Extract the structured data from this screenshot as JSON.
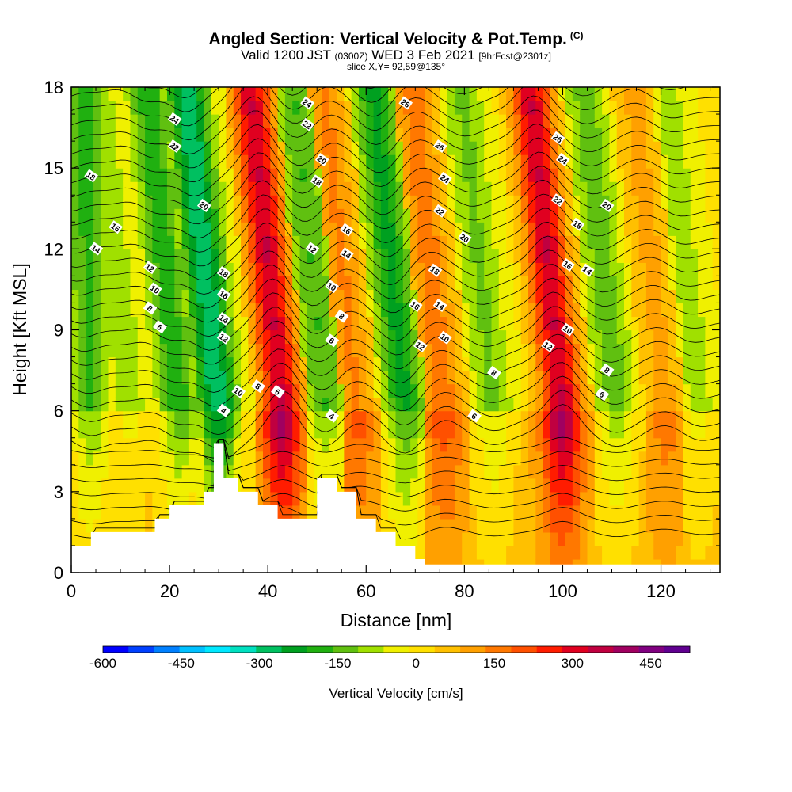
{
  "chart_data": {
    "type": "heatmap",
    "title": "Angled Section: Vertical Velocity & Pot.Temp.",
    "title_tag": "(C)",
    "subtitle_main": "Valid 1200 JST",
    "subtitle_zulu": "(0300Z)",
    "subtitle_date": "WED 3 Feb 2021",
    "subtitle_fcst": "[9hrFcst@2301z]",
    "subtitle2": "slice X,Y= 92,59@135°",
    "xlabel": "Distance [nm]",
    "ylabel": "Height [Kft MSL]",
    "xlim": [
      0,
      132
    ],
    "ylim": [
      0,
      18
    ],
    "x_ticks": [
      "0",
      "20",
      "40",
      "60",
      "80",
      "100",
      "120"
    ],
    "y_ticks": [
      "0",
      "3",
      "6",
      "9",
      "12",
      "15",
      "18"
    ],
    "colorbar": {
      "label": "Vertical Velocity [cm/s]",
      "ticks": [
        "-600",
        "-450",
        "-300",
        "-150",
        "0",
        "150",
        "300",
        "450"
      ],
      "colors": [
        "#0000ff",
        "#0040ff",
        "#0080ff",
        "#00c0ff",
        "#00e8ff",
        "#00e0c0",
        "#00c060",
        "#00a020",
        "#20b010",
        "#60c010",
        "#a0e000",
        "#f0f000",
        "#ffe000",
        "#ffc000",
        "#ffa000",
        "#ff7800",
        "#ff5000",
        "#ff1c00",
        "#e00020",
        "#c00040",
        "#a00060",
        "#800080",
        "#600090"
      ]
    },
    "vertical_velocity_columns": [
      {
        "x_center": 4,
        "value": -170
      },
      {
        "x_center": 12,
        "value": -90
      },
      {
        "x_center": 22,
        "value": -190
      },
      {
        "x_center": 30,
        "value": -300
      },
      {
        "x_center": 36,
        "value": -60
      },
      {
        "x_center": 43,
        "value": 330
      },
      {
        "x_center": 52,
        "value": -160
      },
      {
        "x_center": 58,
        "value": 140
      },
      {
        "x_center": 68,
        "value": -220
      },
      {
        "x_center": 76,
        "value": 160
      },
      {
        "x_center": 86,
        "value": -120
      },
      {
        "x_center": 100,
        "value": 330
      },
      {
        "x_center": 111,
        "value": -140
      },
      {
        "x_center": 121,
        "value": 100
      },
      {
        "x_center": 128,
        "value": -80
      }
    ],
    "terrain_profile": {
      "x": [
        0,
        4,
        9,
        13,
        17,
        20,
        24,
        27,
        29,
        31,
        34,
        38,
        42,
        46,
        50,
        54,
        58,
        62,
        66,
        70,
        72,
        132
      ],
      "height_kft": [
        1.0,
        1.5,
        1.5,
        1.5,
        2.0,
        2.5,
        2.5,
        3.0,
        4.8,
        3.5,
        3.0,
        2.5,
        2.0,
        2.0,
        3.5,
        3.0,
        2.0,
        1.5,
        1.0,
        0.5,
        0.3,
        0.3
      ]
    },
    "contour_labels": [
      {
        "x": 21,
        "y": 16.8,
        "text": "24"
      },
      {
        "x": 21,
        "y": 15.8,
        "text": "22"
      },
      {
        "x": 4,
        "y": 14.7,
        "text": "18"
      },
      {
        "x": 27,
        "y": 13.6,
        "text": "20"
      },
      {
        "x": 9,
        "y": 12.8,
        "text": "16"
      },
      {
        "x": 5,
        "y": 12.0,
        "text": "14"
      },
      {
        "x": 16,
        "y": 11.3,
        "text": "12"
      },
      {
        "x": 17,
        "y": 10.5,
        "text": "10"
      },
      {
        "x": 16,
        "y": 9.8,
        "text": "8"
      },
      {
        "x": 18,
        "y": 9.1,
        "text": "6"
      },
      {
        "x": 31,
        "y": 11.1,
        "text": "18"
      },
      {
        "x": 31,
        "y": 10.3,
        "text": "16"
      },
      {
        "x": 31,
        "y": 9.4,
        "text": "14"
      },
      {
        "x": 31,
        "y": 8.7,
        "text": "12"
      },
      {
        "x": 34,
        "y": 6.7,
        "text": "10"
      },
      {
        "x": 38,
        "y": 6.9,
        "text": "8"
      },
      {
        "x": 42,
        "y": 6.7,
        "text": "6"
      },
      {
        "x": 31,
        "y": 6.0,
        "text": "4"
      },
      {
        "x": 48,
        "y": 17.4,
        "text": "24"
      },
      {
        "x": 48,
        "y": 16.6,
        "text": "22"
      },
      {
        "x": 51,
        "y": 15.3,
        "text": "20"
      },
      {
        "x": 50,
        "y": 14.5,
        "text": "18"
      },
      {
        "x": 49,
        "y": 12.0,
        "text": "12"
      },
      {
        "x": 56,
        "y": 12.7,
        "text": "16"
      },
      {
        "x": 56,
        "y": 11.8,
        "text": "14"
      },
      {
        "x": 53,
        "y": 10.6,
        "text": "10"
      },
      {
        "x": 55,
        "y": 9.5,
        "text": "8"
      },
      {
        "x": 53,
        "y": 8.6,
        "text": "6"
      },
      {
        "x": 53,
        "y": 5.8,
        "text": "4"
      },
      {
        "x": 68,
        "y": 17.4,
        "text": "26"
      },
      {
        "x": 75,
        "y": 15.8,
        "text": "26"
      },
      {
        "x": 76,
        "y": 14.6,
        "text": "24"
      },
      {
        "x": 75,
        "y": 13.4,
        "text": "22"
      },
      {
        "x": 80,
        "y": 12.4,
        "text": "20"
      },
      {
        "x": 74,
        "y": 11.2,
        "text": "18"
      },
      {
        "x": 70,
        "y": 9.9,
        "text": "16"
      },
      {
        "x": 75,
        "y": 9.9,
        "text": "14"
      },
      {
        "x": 71,
        "y": 8.4,
        "text": "12"
      },
      {
        "x": 76,
        "y": 8.7,
        "text": "10"
      },
      {
        "x": 86,
        "y": 7.4,
        "text": "8"
      },
      {
        "x": 82,
        "y": 5.8,
        "text": "6"
      },
      {
        "x": 99,
        "y": 16.1,
        "text": "26"
      },
      {
        "x": 100,
        "y": 15.3,
        "text": "24"
      },
      {
        "x": 99,
        "y": 13.8,
        "text": "22"
      },
      {
        "x": 103,
        "y": 12.9,
        "text": "18"
      },
      {
        "x": 109,
        "y": 13.6,
        "text": "20"
      },
      {
        "x": 101,
        "y": 11.4,
        "text": "16"
      },
      {
        "x": 105,
        "y": 11.2,
        "text": "14"
      },
      {
        "x": 97,
        "y": 8.4,
        "text": "12"
      },
      {
        "x": 101,
        "y": 9.0,
        "text": "10"
      },
      {
        "x": 109,
        "y": 7.5,
        "text": "8"
      },
      {
        "x": 108,
        "y": 6.6,
        "text": "6"
      }
    ]
  }
}
